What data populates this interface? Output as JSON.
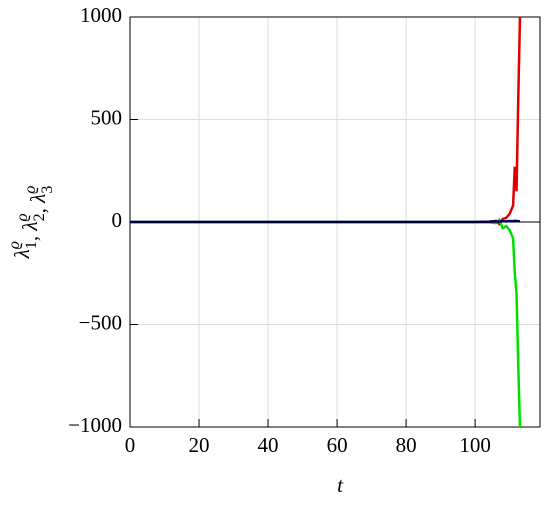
{
  "chart_data": {
    "type": "line",
    "xlabel": "t",
    "ylabel": [
      {
        "text": "λ",
        "sub": "1",
        "sup": "ϱ"
      },
      {
        "text": ", λ",
        "sub": "2",
        "sup": "ϱ"
      },
      {
        "text": ", λ",
        "sub": "3",
        "sup": "ϱ"
      }
    ],
    "x": [
      0,
      20,
      40,
      60,
      80,
      100,
      104,
      106,
      107,
      108,
      109,
      110,
      111,
      111.5,
      112,
      112.5,
      113
    ],
    "series": [
      {
        "color": "#e00000",
        "values": [
          0,
          0,
          0,
          0,
          0,
          0,
          2,
          5,
          -10,
          15,
          20,
          40,
          80,
          270,
          150,
          600,
          1000
        ]
      },
      {
        "color": "#00e000",
        "values": [
          0,
          0,
          0,
          0,
          0,
          0,
          -2,
          -5,
          10,
          -30,
          -20,
          -40,
          -80,
          -250,
          -350,
          -700,
          -1000
        ]
      },
      {
        "color": "#000080",
        "values": [
          0,
          0,
          0,
          0,
          0,
          0,
          1,
          3,
          2,
          4,
          3,
          5,
          4,
          6,
          5,
          4,
          3
        ]
      }
    ],
    "xlim": [
      0,
      118.8
    ],
    "ylim": [
      -1000,
      1000
    ],
    "xticks": [
      0,
      20,
      40,
      60,
      80,
      100
    ],
    "yticks": [
      {
        "value": -1000,
        "label": "−1000"
      },
      {
        "value": -500,
        "label": "−500"
      },
      0,
      500,
      1000
    ],
    "grid": true
  }
}
